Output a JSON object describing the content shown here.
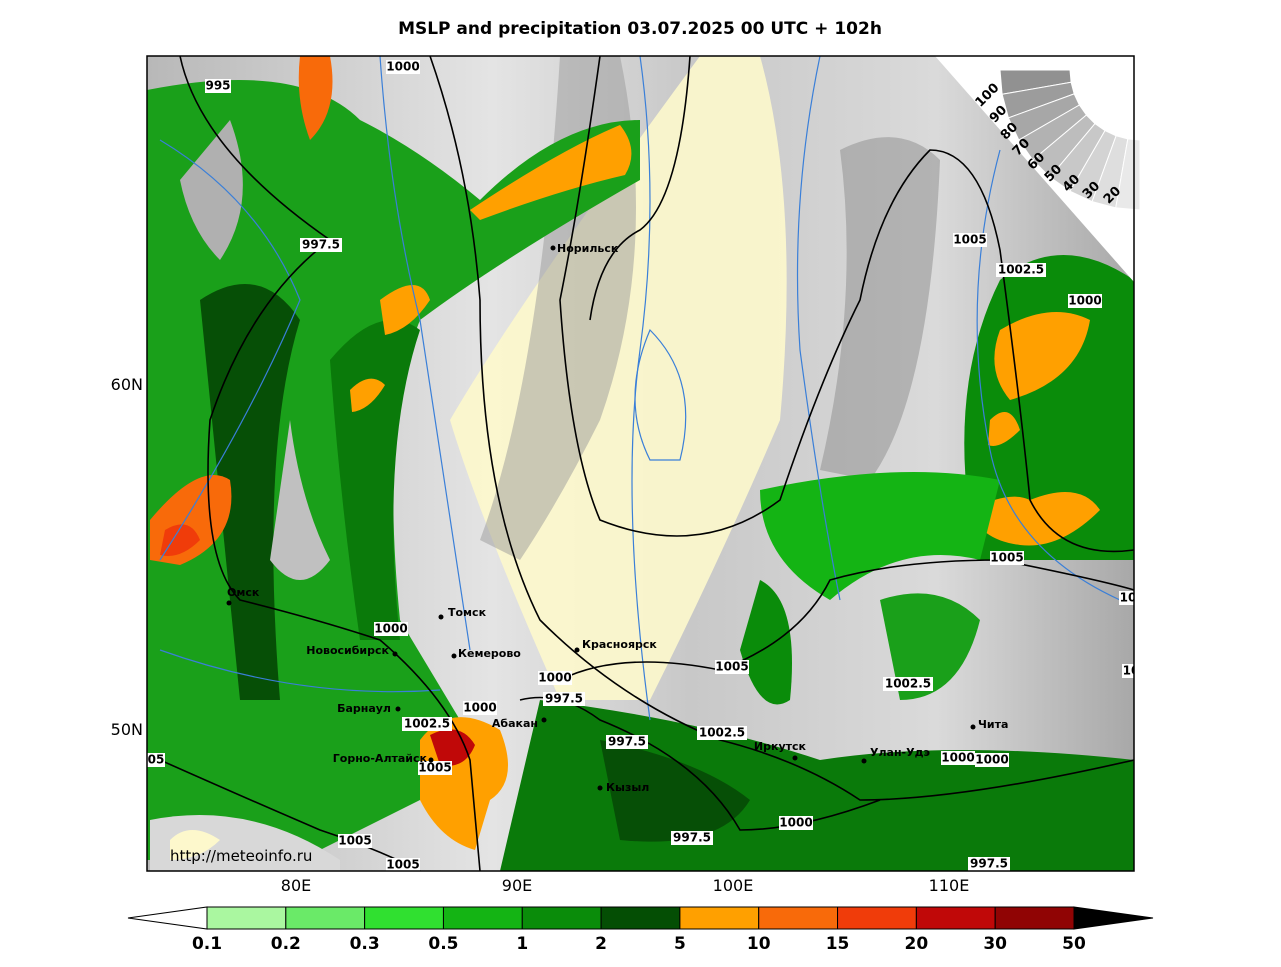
{
  "title": "MSLP and precipitation 03.07.2025 00 UTC + 102h",
  "axis_labels": {
    "lon": [
      "80E",
      "90E",
      "100E",
      "110E"
    ],
    "lat": [
      "60N",
      "50N"
    ]
  },
  "cities": [
    "Норильск",
    "Омск",
    "Томск",
    "Новосибирск",
    "Кемерово",
    "Красноярск",
    "Барнаул",
    "Абакан",
    "Горно-Алтайск",
    "Иркутск",
    "Улан-Удэ",
    "Чита",
    "Кызыл"
  ],
  "isobar_labels": [
    "1000",
    "995",
    "997.5",
    "1005",
    "1002.5",
    "1000",
    "1005",
    "1000",
    "1005",
    "1000",
    "997.5",
    "1000",
    "1002.5",
    "1002.5",
    "997.5",
    "1002.5",
    "1005",
    "05",
    "1000",
    "1000",
    "1000",
    "997.5",
    "1005",
    "1005",
    "997.5",
    "10",
    "10"
  ],
  "cloud_scale": [
    100,
    90,
    80,
    70,
    60,
    50,
    40,
    30,
    20
  ],
  "colorbar": {
    "levels": [
      0.1,
      0.2,
      0.3,
      0.5,
      1,
      2,
      5,
      10,
      15,
      20,
      30,
      50
    ],
    "colors": [
      "#aaf7a0",
      "#6aea68",
      "#30e030",
      "#14b414",
      "#0a8c0a",
      "#044e04",
      "#ffa000",
      "#f86a0a",
      "#f03c0a",
      "#c00808",
      "#900404"
    ]
  },
  "url": "http://meteoinfo.ru"
}
